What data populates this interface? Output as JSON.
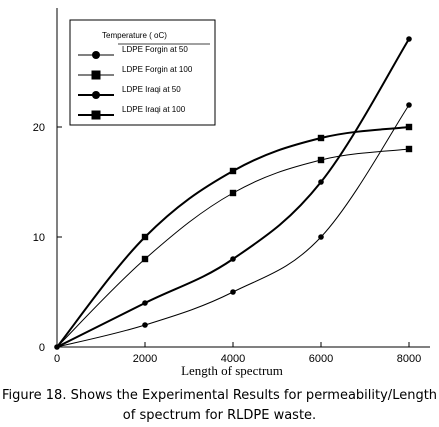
{
  "chart_data": {
    "type": "line",
    "xlabel": "Length of spectrum",
    "ylabel": "",
    "xlim": [
      0,
      8000
    ],
    "ylim": [
      0,
      30
    ],
    "x_ticks": [
      "0",
      "2000",
      "4000",
      "6000",
      "8000"
    ],
    "y_ticks": [
      "0",
      "10",
      "20"
    ],
    "legend_title": "Temperature  ( oC)",
    "legend_position": "top-left",
    "grid": false,
    "x": [
      0,
      2000,
      4000,
      6000,
      8000
    ],
    "series": [
      {
        "name": "LDPE Forgin at 50",
        "marker": "circle",
        "weight": "thin",
        "values": [
          0,
          2,
          5,
          10,
          22
        ]
      },
      {
        "name": "LDPE Forgin at 100",
        "marker": "square",
        "weight": "thin",
        "values": [
          0,
          8,
          14,
          17,
          18
        ]
      },
      {
        "name": "LDPE Iraqi at 50",
        "marker": "circle",
        "weight": "thick",
        "values": [
          0,
          4,
          8,
          15,
          28
        ]
      },
      {
        "name": "LDPE Iraqi at 100",
        "marker": "square",
        "weight": "thick",
        "values": [
          0,
          10,
          16,
          19,
          20
        ]
      }
    ]
  },
  "caption": {
    "line1": "Figure 18. Shows the Experimental Results for permeability/Length",
    "line2": "of spectrum for RLDPE waste."
  }
}
